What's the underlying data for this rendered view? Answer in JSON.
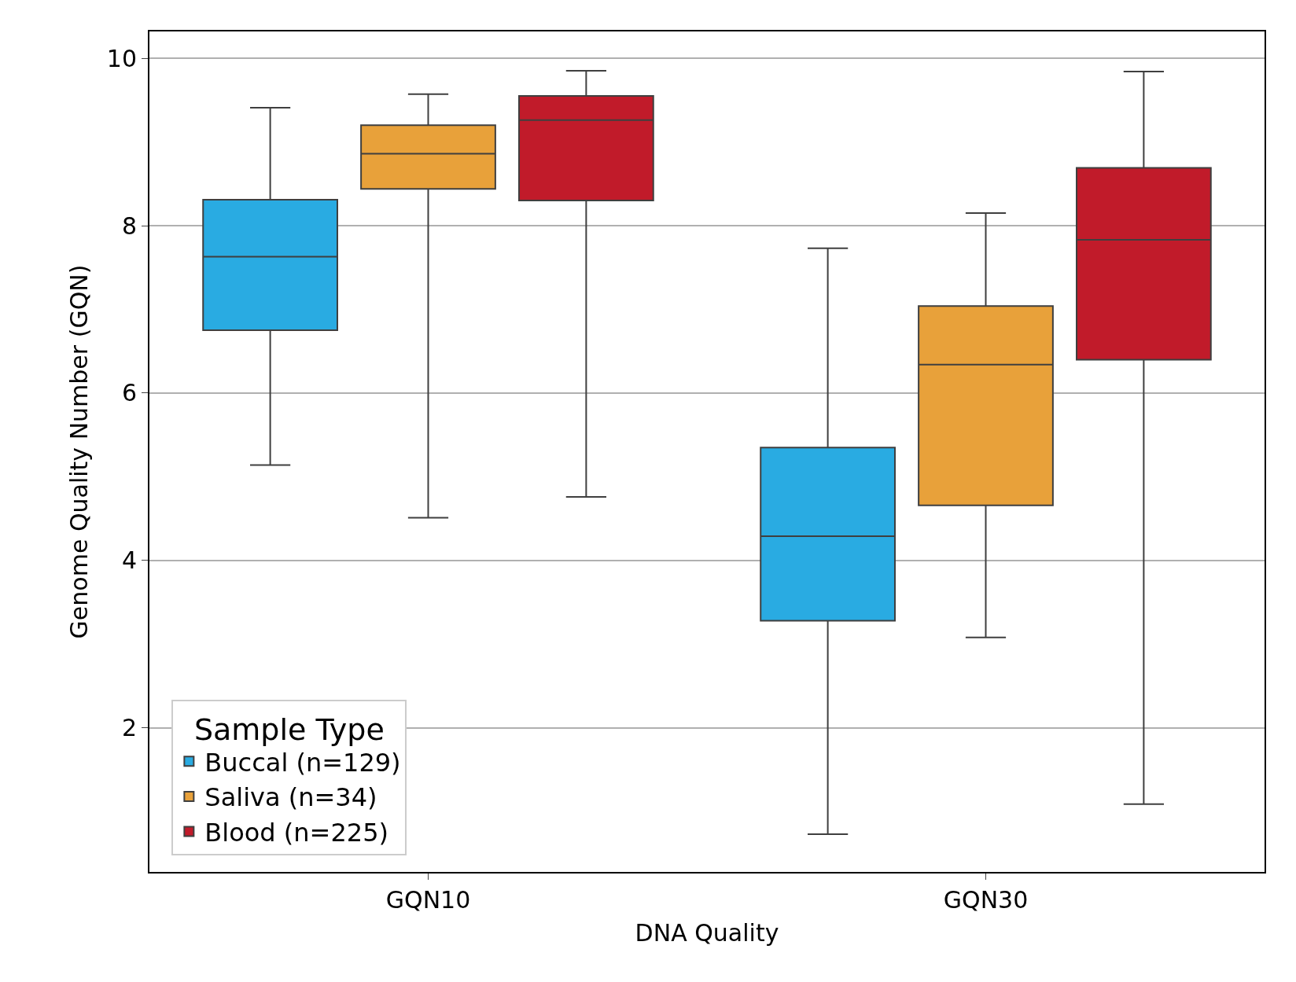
{
  "chart_data": {
    "type": "box",
    "xlabel": "DNA Quality",
    "ylabel": "Genome Quality Number (GQN)",
    "legend_title": "Sample Type",
    "categories": [
      "GQN10",
      "GQN30"
    ],
    "series": [
      {
        "name": "Buccal (n=129)",
        "color": "#29abe2",
        "boxes": [
          {
            "low": 5.14,
            "q1": 6.75,
            "median": 7.63,
            "q3": 8.31,
            "high": 9.41
          },
          {
            "low": 0.73,
            "q1": 3.28,
            "median": 4.29,
            "q3": 5.35,
            "high": 7.73
          }
        ]
      },
      {
        "name": "Saliva (n=34)",
        "color": "#e8a13a",
        "boxes": [
          {
            "low": 4.51,
            "q1": 8.44,
            "median": 8.86,
            "q3": 9.2,
            "high": 9.57
          },
          {
            "low": 3.08,
            "q1": 4.66,
            "median": 6.34,
            "q3": 7.04,
            "high": 8.15
          }
        ]
      },
      {
        "name": "Blood (n=225)",
        "color": "#c11b2a",
        "boxes": [
          {
            "low": 4.76,
            "q1": 8.3,
            "median": 9.26,
            "q3": 9.55,
            "high": 9.85
          },
          {
            "low": 1.09,
            "q1": 6.4,
            "median": 7.83,
            "q3": 8.69,
            "high": 9.84
          }
        ]
      }
    ],
    "ylim": [
      0.28,
      10.32
    ],
    "yticks": [
      2,
      4,
      6,
      8,
      10
    ],
    "grid": "y",
    "legend": "bottom left"
  }
}
